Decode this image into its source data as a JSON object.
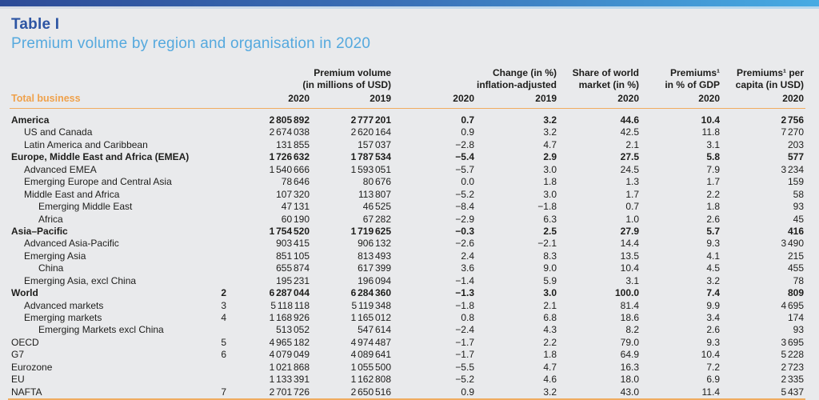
{
  "title": "Table I",
  "subtitle": "Premium volume by region and organisation in 2020",
  "colors": {
    "accent_blue_dark": "#2c4b97",
    "accent_blue_light": "#47abe3",
    "title_blue": "#2d55a3",
    "subtitle_blue": "#55a9de",
    "orange": "#efa14b",
    "rule_orange": "#f0ac60",
    "background": "#e9eaec",
    "text": "#1d1d1b"
  },
  "table": {
    "row_header_label": "Total business",
    "column_groups": [
      {
        "line1": "Premium volume",
        "line2": "(in millions of USD)"
      },
      {
        "line1": "Change (in %)",
        "line2": "inflation-adjusted"
      },
      {
        "line1": "Share of world",
        "line2": "market (in %)"
      },
      {
        "line1": "Premiums¹",
        "line2": "in % of GDP"
      },
      {
        "line1": "Premiums¹ per",
        "line2": "capita (in USD)"
      }
    ],
    "year_columns": [
      "2020",
      "2019",
      "2020",
      "2019",
      "2020",
      "2020",
      "2020"
    ],
    "rows": [
      {
        "label": "America",
        "indent": 0,
        "bold": true,
        "fn": "",
        "values": [
          "2 805 892",
          "2 777 201",
          "0.7",
          "3.2",
          "44.6",
          "10.4",
          "2 756"
        ]
      },
      {
        "label": "US and Canada",
        "indent": 1,
        "bold": false,
        "fn": "",
        "values": [
          "2 674 038",
          "2 620 164",
          "0.9",
          "3.2",
          "42.5",
          "11.8",
          "7 270"
        ]
      },
      {
        "label": "Latin America and Caribbean",
        "indent": 1,
        "bold": false,
        "fn": "",
        "values": [
          "131 855",
          "157 037",
          "−2.8",
          "4.7",
          "2.1",
          "3.1",
          "203"
        ]
      },
      {
        "label": "Europe, Middle East and Africa (EMEA)",
        "indent": 0,
        "bold": true,
        "fn": "",
        "values": [
          "1 726 632",
          "1 787 534",
          "−5.4",
          "2.9",
          "27.5",
          "5.8",
          "577"
        ]
      },
      {
        "label": "Advanced EMEA",
        "indent": 1,
        "bold": false,
        "fn": "",
        "values": [
          "1 540 666",
          "1 593 051",
          "−5.7",
          "3.0",
          "24.5",
          "7.9",
          "3 234"
        ]
      },
      {
        "label": "Emerging Europe and Central Asia",
        "indent": 1,
        "bold": false,
        "fn": "",
        "values": [
          "78 646",
          "80 676",
          "0.0",
          "1.8",
          "1.3",
          "1.7",
          "159"
        ]
      },
      {
        "label": "Middle East and Africa",
        "indent": 1,
        "bold": false,
        "fn": "",
        "values": [
          "107 320",
          "113 807",
          "−5.2",
          "3.0",
          "1.7",
          "2.2",
          "58"
        ]
      },
      {
        "label": "Emerging Middle East",
        "indent": 2,
        "bold": false,
        "fn": "",
        "values": [
          "47 131",
          "46 525",
          "−8.4",
          "−1.8",
          "0.7",
          "1.8",
          "93"
        ]
      },
      {
        "label": "Africa",
        "indent": 2,
        "bold": false,
        "fn": "",
        "values": [
          "60 190",
          "67 282",
          "−2.9",
          "6.3",
          "1.0",
          "2.6",
          "45"
        ]
      },
      {
        "label": "Asia–Pacific",
        "indent": 0,
        "bold": true,
        "fn": "",
        "values": [
          "1 754 520",
          "1 719 625",
          "−0.3",
          "2.5",
          "27.9",
          "5.7",
          "416"
        ]
      },
      {
        "label": "Advanced Asia-Pacific",
        "indent": 1,
        "bold": false,
        "fn": "",
        "values": [
          "903 415",
          "906 132",
          "−2.6",
          "−2.1",
          "14.4",
          "9.3",
          "3 490"
        ]
      },
      {
        "label": "Emerging Asia",
        "indent": 1,
        "bold": false,
        "fn": "",
        "values": [
          "851 105",
          "813 493",
          "2.4",
          "8.3",
          "13.5",
          "4.1",
          "215"
        ]
      },
      {
        "label": "China",
        "indent": 2,
        "bold": false,
        "fn": "",
        "values": [
          "655 874",
          "617 399",
          "3.6",
          "9.0",
          "10.4",
          "4.5",
          "455"
        ]
      },
      {
        "label": "Emerging Asia, excl China",
        "indent": 1,
        "bold": false,
        "fn": "",
        "values": [
          "195 231",
          "196 094",
          "−1.4",
          "5.9",
          "3.1",
          "3.2",
          "78"
        ]
      },
      {
        "label": "World",
        "indent": 0,
        "bold": true,
        "fn": "2",
        "values": [
          "6 287 044",
          "6 284 360",
          "−1.3",
          "3.0",
          "100.0",
          "7.4",
          "809"
        ]
      },
      {
        "label": "Advanced markets",
        "indent": 1,
        "bold": false,
        "fn": "3",
        "values": [
          "5 118 118",
          "5 119 348",
          "−1.8",
          "2.1",
          "81.4",
          "9.9",
          "4 695"
        ]
      },
      {
        "label": "Emerging markets",
        "indent": 1,
        "bold": false,
        "fn": "4",
        "values": [
          "1 168 926",
          "1 165 012",
          "0.8",
          "6.8",
          "18.6",
          "3.4",
          "174"
        ]
      },
      {
        "label": "Emerging Markets excl China",
        "indent": 2,
        "bold": false,
        "fn": "",
        "values": [
          "513 052",
          "547 614",
          "−2.4",
          "4.3",
          "8.2",
          "2.6",
          "93"
        ]
      },
      {
        "label": "OECD",
        "indent": 0,
        "bold": false,
        "fn": "5",
        "values": [
          "4 965 182",
          "4 974 487",
          "−1.7",
          "2.2",
          "79.0",
          "9.3",
          "3 695"
        ]
      },
      {
        "label": "G7",
        "indent": 0,
        "bold": false,
        "fn": "6",
        "values": [
          "4 079 049",
          "4 089 641",
          "−1.7",
          "1.8",
          "64.9",
          "10.4",
          "5 228"
        ]
      },
      {
        "label": "Eurozone",
        "indent": 0,
        "bold": false,
        "fn": "",
        "values": [
          "1 021 868",
          "1 055 500",
          "−5.5",
          "4.7",
          "16.3",
          "7.2",
          "2 723"
        ]
      },
      {
        "label": "EU",
        "indent": 0,
        "bold": false,
        "fn": "",
        "values": [
          "1 133 391",
          "1 162 808",
          "−5.2",
          "4.6",
          "18.0",
          "6.9",
          "2 335"
        ]
      },
      {
        "label": "NAFTA",
        "indent": 0,
        "bold": false,
        "fn": "7",
        "values": [
          "2 701 726",
          "2 650 516",
          "0.9",
          "3.2",
          "43.0",
          "11.4",
          "5 437"
        ]
      }
    ]
  }
}
